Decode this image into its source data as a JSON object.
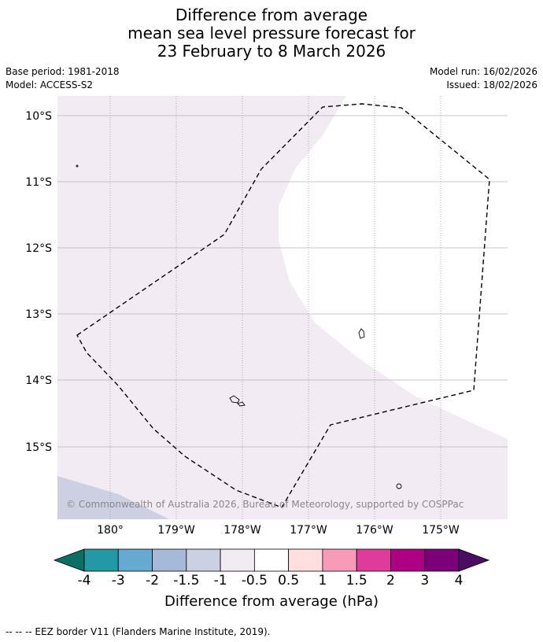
{
  "title": {
    "line1": "Difference from average",
    "line2": "mean sea level pressure forecast for",
    "line3": "23 February to 8 March 2026"
  },
  "meta_left": {
    "base_period": "Base period: 1981-2018",
    "model": "Model: ACCESS-S2"
  },
  "meta_right": {
    "model_run": "Model run: 16/02/2026",
    "issued": "Issued: 18/02/2026"
  },
  "map": {
    "lat_labels": [
      "10°S",
      "11°S",
      "12°S",
      "13°S",
      "14°S",
      "15°S"
    ],
    "lon_labels": [
      "180°",
      "179°W",
      "178°W",
      "177°W",
      "176°W",
      "175°W"
    ],
    "copyright": "© Commonwealth of Australia 2026, Bureau of Meteorology, supported by COSPPac",
    "fill_colors": {
      "light_purple": "#f3ebf4",
      "light_blue": "#cdd0e3",
      "white": "#ffffff"
    }
  },
  "colorbar": {
    "label": "Difference from average (hPa)",
    "ticks": [
      "-4",
      "-3",
      "-2",
      "-1.5",
      "-1",
      "-0.5",
      "0.5",
      "1",
      "1.5",
      "2",
      "3",
      "4"
    ],
    "colors": [
      "#0f6e64",
      "#2399a5",
      "#66aad2",
      "#a7b9d9",
      "#ccd0e3",
      "#f3ebf4",
      "#ffffff",
      "#ffdfe0",
      "#f79bb8",
      "#de3b9c",
      "#ad0083",
      "#7c0079",
      "#4a0d63"
    ]
  },
  "footer": {
    "legend": "--  --  -- EEZ border V11 (Flanders Marine Institute, 2019)."
  }
}
